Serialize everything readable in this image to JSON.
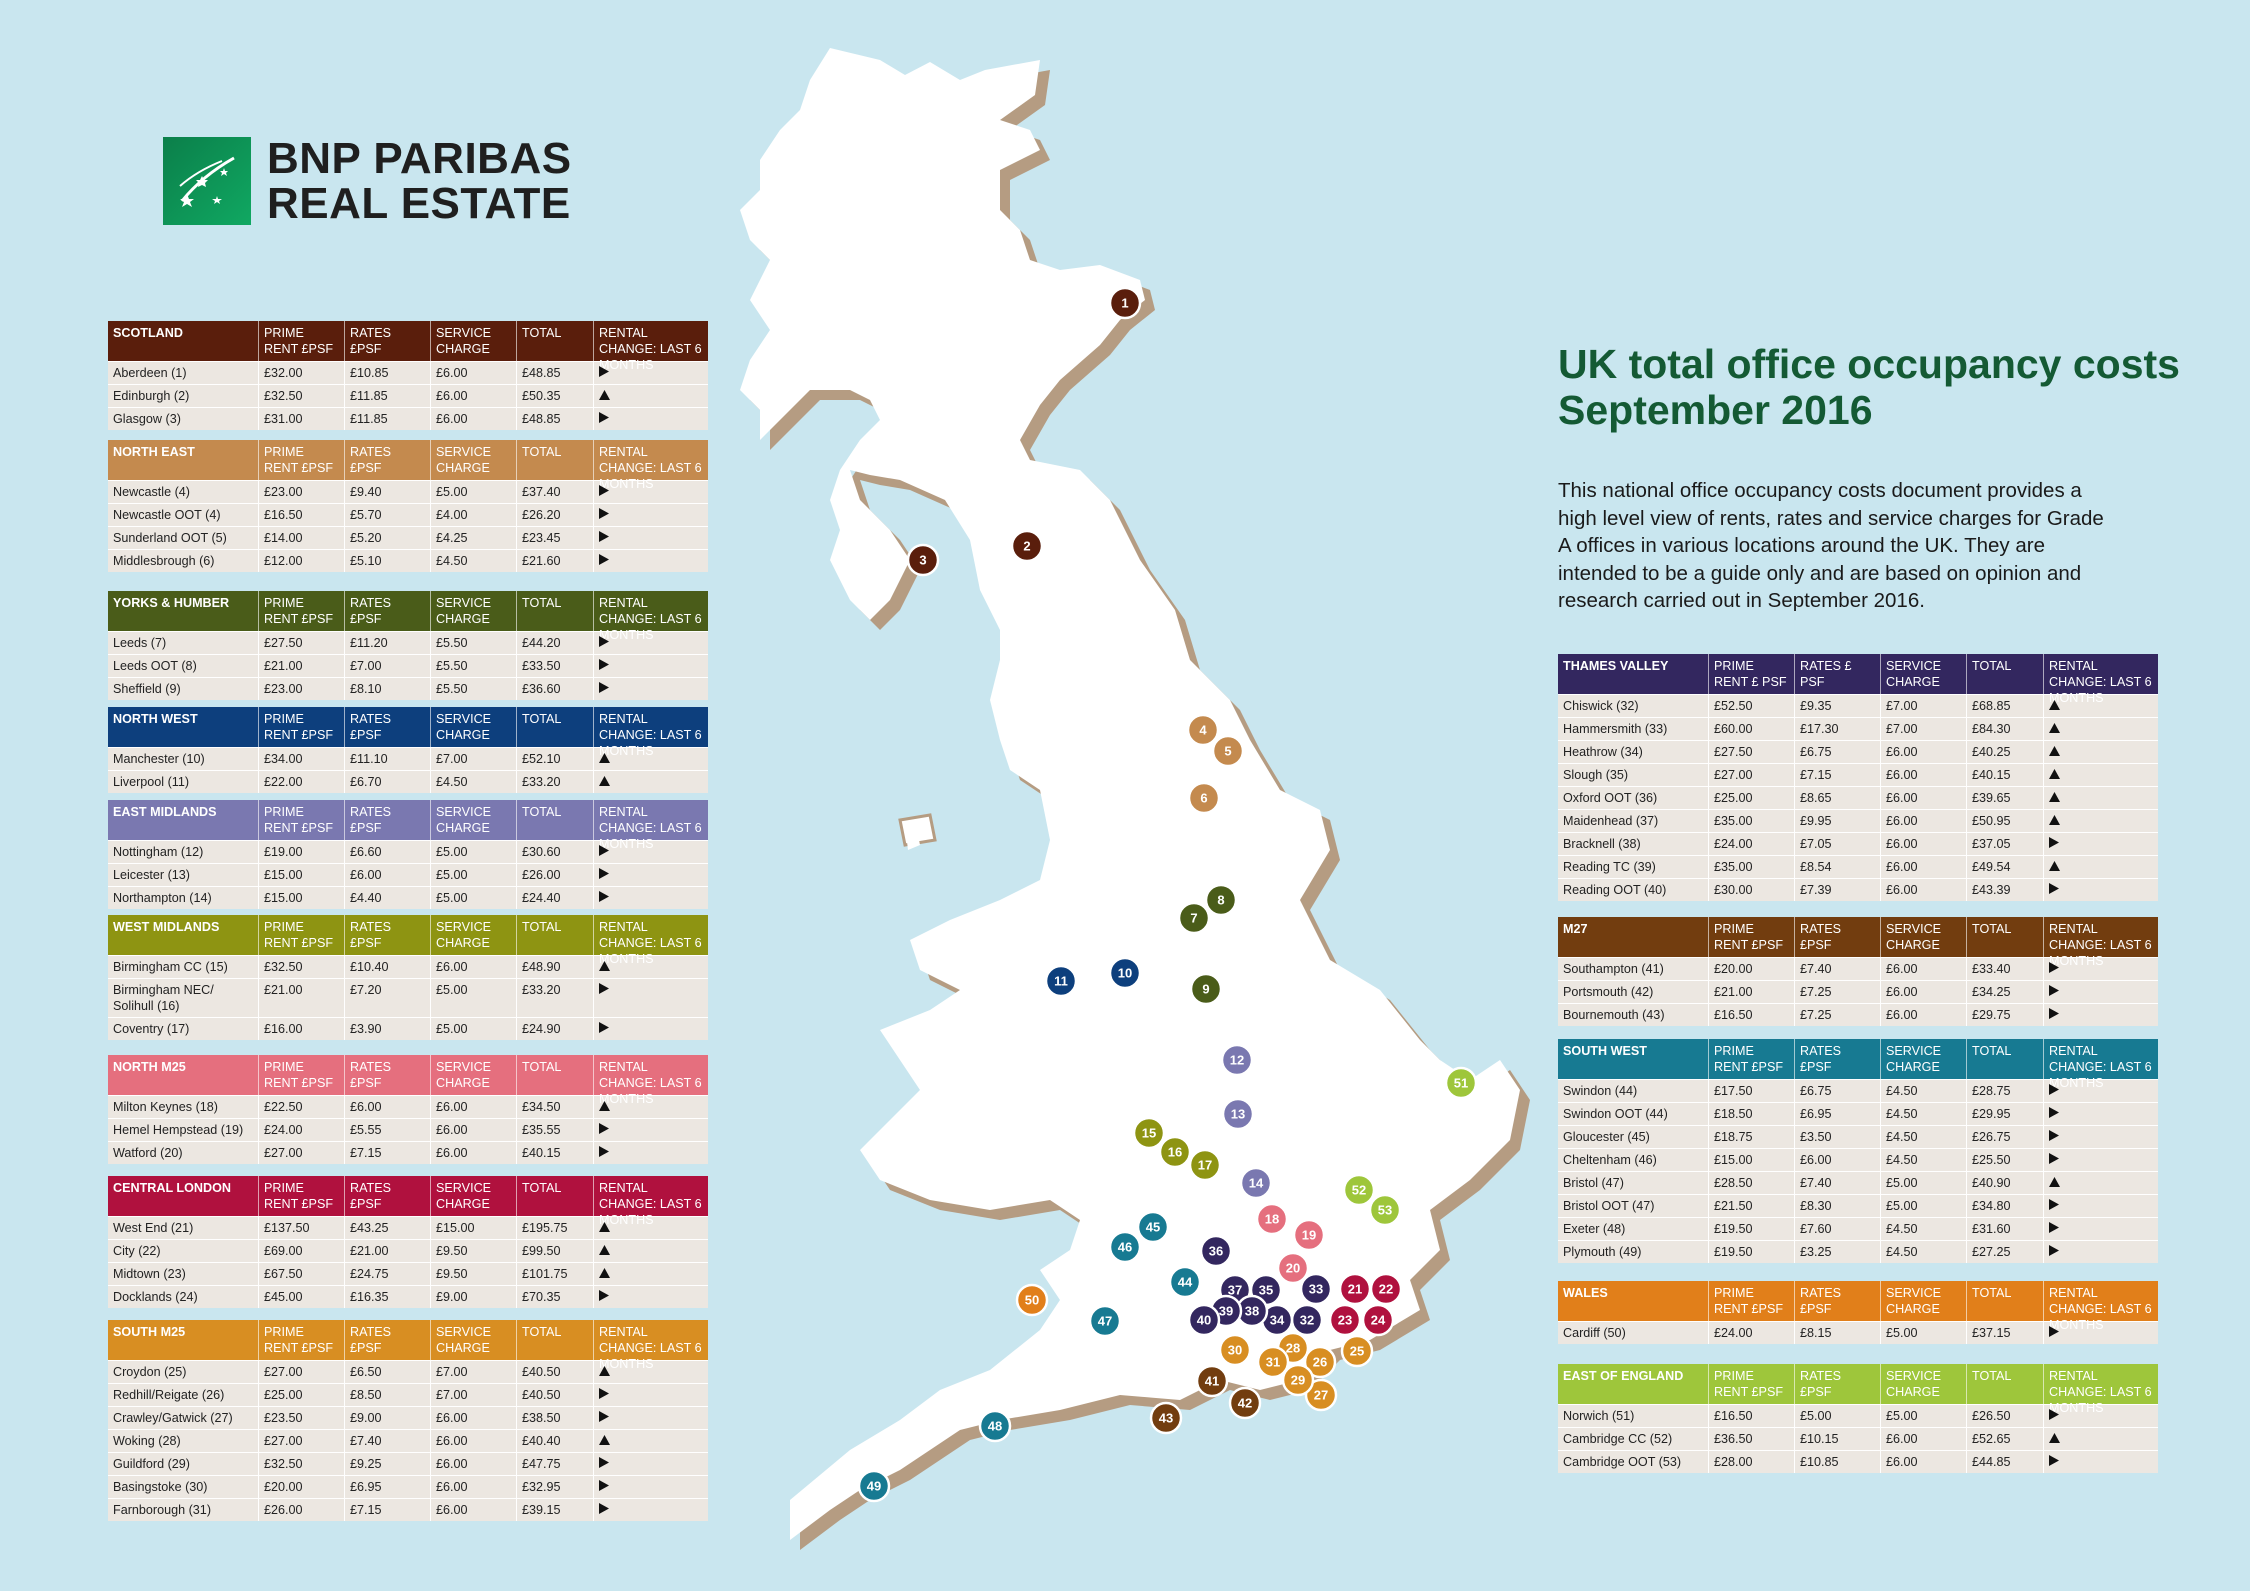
{
  "logo": {
    "line1": "BNP PARIBAS",
    "line2": "REAL ESTATE"
  },
  "title": {
    "line1": "UK total office occupancy costs",
    "line2": "September 2016"
  },
  "intro": "This national office occupancy costs document provides a high level view of rents, rates and service charges for Grade A offices in various locations around the UK. They are intended to be a guide only and are based on opinion and research carried out in September 2016.",
  "colors": {
    "scotland": "#5a1e0c",
    "north_east": "#c48a4e",
    "yorks": "#4a5c19",
    "north_west": "#0d3f7d",
    "east_midlands": "#7a78b0",
    "west_midlands": "#8e9412",
    "north_m25": "#e56f7e",
    "central_london": "#b0113e",
    "south_m25": "#d88e22",
    "thames_valley": "#33275f",
    "m27": "#723d0f",
    "south_west": "#177a92",
    "wales": "#e17f1a",
    "east_england": "#9ec63b"
  },
  "header_labels": {
    "prime": "PRIME RENT £PSF",
    "prime_tv": "PRIME RENT £ PSF",
    "rates": "RATES £PSF",
    "rates_tv": "RATES £ PSF",
    "service": "SERVICE CHARGE",
    "total": "TOTAL",
    "change": "RENTAL CHANGE: LAST 6 MONTHS"
  },
  "tables": [
    {
      "key": "scotland",
      "region": "SCOTLAND",
      "rows": [
        [
          "Aberdeen (1)",
          "£32.00",
          "£10.85",
          "£6.00",
          "£48.85",
          "right"
        ],
        [
          "Edinburgh (2)",
          "£32.50",
          "£11.85",
          "£6.00",
          "£50.35",
          "up"
        ],
        [
          "Glasgow (3)",
          "£31.00",
          "£11.85",
          "£6.00",
          "£48.85",
          "right"
        ]
      ]
    },
    {
      "key": "north_east",
      "region": "NORTH EAST",
      "rows": [
        [
          "Newcastle (4)",
          "£23.00",
          "£9.40",
          "£5.00",
          "£37.40",
          "right"
        ],
        [
          "Newcastle OOT (4)",
          "£16.50",
          "£5.70",
          "£4.00",
          "£26.20",
          "right"
        ],
        [
          "Sunderland OOT (5)",
          "£14.00",
          "£5.20",
          "£4.25",
          "£23.45",
          "right"
        ],
        [
          "Middlesbrough (6)",
          "£12.00",
          "£5.10",
          "£4.50",
          "£21.60",
          "right"
        ]
      ]
    },
    {
      "key": "yorks",
      "region": "YORKS & HUMBER",
      "rows": [
        [
          "Leeds (7)",
          "£27.50",
          "£11.20",
          "£5.50",
          "£44.20",
          "right"
        ],
        [
          "Leeds OOT (8)",
          "£21.00",
          "£7.00",
          "£5.50",
          "£33.50",
          "right"
        ],
        [
          "Sheffield (9)",
          "£23.00",
          "£8.10",
          "£5.50",
          "£36.60",
          "right"
        ]
      ]
    },
    {
      "key": "north_west",
      "region": "NORTH WEST",
      "rows": [
        [
          "Manchester (10)",
          "£34.00",
          "£11.10",
          "£7.00",
          "£52.10",
          "up"
        ],
        [
          "Liverpool (11)",
          "£22.00",
          "£6.70",
          "£4.50",
          "£33.20",
          "up"
        ]
      ]
    },
    {
      "key": "east_midlands",
      "region": "EAST MIDLANDS",
      "rows": [
        [
          "Nottingham (12)",
          "£19.00",
          "£6.60",
          "£5.00",
          "£30.60",
          "right"
        ],
        [
          "Leicester (13)",
          "£15.00",
          "£6.00",
          "£5.00",
          "£26.00",
          "right"
        ],
        [
          "Northampton (14)",
          "£15.00",
          "£4.40",
          "£5.00",
          "£24.40",
          "right"
        ]
      ]
    },
    {
      "key": "west_midlands",
      "region": "WEST MIDLANDS",
      "rows": [
        [
          "Birmingham CC (15)",
          "£32.50",
          "£10.40",
          "£6.00",
          "£48.90",
          "up"
        ],
        [
          "Birmingham NEC/ Solihull (16)",
          "£21.00",
          "£7.20",
          "£5.00",
          "£33.20",
          "right"
        ],
        [
          "Coventry (17)",
          "£16.00",
          "£3.90",
          "£5.00",
          "£24.90",
          "right"
        ]
      ]
    },
    {
      "key": "north_m25",
      "region": "NORTH M25",
      "rows": [
        [
          "Milton Keynes (18)",
          "£22.50",
          "£6.00",
          "£6.00",
          "£34.50",
          "up"
        ],
        [
          "Hemel Hempstead (19)",
          "£24.00",
          "£5.55",
          "£6.00",
          "£35.55",
          "right"
        ],
        [
          "Watford (20)",
          "£27.00",
          "£7.15",
          "£6.00",
          "£40.15",
          "right"
        ]
      ]
    },
    {
      "key": "central_london",
      "region": "CENTRAL LONDON",
      "rows": [
        [
          "West End (21)",
          "£137.50",
          "£43.25",
          "£15.00",
          "£195.75",
          "up"
        ],
        [
          "City (22)",
          "£69.00",
          "£21.00",
          "£9.50",
          "£99.50",
          "up"
        ],
        [
          "Midtown (23)",
          "£67.50",
          "£24.75",
          "£9.50",
          "£101.75",
          "up"
        ],
        [
          "Docklands (24)",
          "£45.00",
          "£16.35",
          "£9.00",
          "£70.35",
          "right"
        ]
      ]
    },
    {
      "key": "south_m25",
      "region": "SOUTH M25",
      "rows": [
        [
          "Croydon (25)",
          "£27.00",
          "£6.50",
          "£7.00",
          "£40.50",
          "up"
        ],
        [
          "Redhill/Reigate (26)",
          "£25.00",
          "£8.50",
          "£7.00",
          "£40.50",
          "right"
        ],
        [
          "Crawley/Gatwick (27)",
          "£23.50",
          "£9.00",
          "£6.00",
          "£38.50",
          "right"
        ],
        [
          "Woking (28)",
          "£27.00",
          "£7.40",
          "£6.00",
          "£40.40",
          "up"
        ],
        [
          "Guildford (29)",
          "£32.50",
          "£9.25",
          "£6.00",
          "£47.75",
          "right"
        ],
        [
          "Basingstoke (30)",
          "£20.00",
          "£6.95",
          "£6.00",
          "£32.95",
          "right"
        ],
        [
          "Farnborough (31)",
          "£26.00",
          "£7.15",
          "£6.00",
          "£39.15",
          "right"
        ]
      ]
    },
    {
      "key": "thames_valley",
      "region": "THAMES VALLEY",
      "tv": true,
      "rows": [
        [
          "Chiswick (32)",
          "£52.50",
          "£9.35",
          "£7.00",
          "£68.85",
          "up"
        ],
        [
          "Hammersmith (33)",
          "£60.00",
          "£17.30",
          "£7.00",
          "£84.30",
          "up"
        ],
        [
          "Heathrow (34)",
          "£27.50",
          "£6.75",
          "£6.00",
          "£40.25",
          "up"
        ],
        [
          "Slough (35)",
          "£27.00",
          "£7.15",
          "£6.00",
          "£40.15",
          "up"
        ],
        [
          "Oxford OOT (36)",
          "£25.00",
          "£8.65",
          "£6.00",
          "£39.65",
          "up"
        ],
        [
          "Maidenhead (37)",
          "£35.00",
          "£9.95",
          "£6.00",
          "£50.95",
          "up"
        ],
        [
          "Bracknell (38)",
          "£24.00",
          "£7.05",
          "£6.00",
          "£37.05",
          "right"
        ],
        [
          "Reading TC (39)",
          "£35.00",
          "£8.54",
          "£6.00",
          "£49.54",
          "up"
        ],
        [
          "Reading OOT (40)",
          "£30.00",
          "£7.39",
          "£6.00",
          "£43.39",
          "right"
        ]
      ]
    },
    {
      "key": "m27",
      "region": "M27",
      "rows": [
        [
          "Southampton (41)",
          "£20.00",
          "£7.40",
          "£6.00",
          "£33.40",
          "right"
        ],
        [
          "Portsmouth (42)",
          "£21.00",
          "£7.25",
          "£6.00",
          "£34.25",
          "right"
        ],
        [
          "Bournemouth (43)",
          "£16.50",
          "£7.25",
          "£6.00",
          "£29.75",
          "right"
        ]
      ]
    },
    {
      "key": "south_west",
      "region": "SOUTH WEST",
      "rows": [
        [
          "Swindon (44)",
          "£17.50",
          "£6.75",
          "£4.50",
          "£28.75",
          "right"
        ],
        [
          "Swindon OOT (44)",
          "£18.50",
          "£6.95",
          "£4.50",
          "£29.95",
          "right"
        ],
        [
          "Gloucester (45)",
          "£18.75",
          "£3.50",
          "£4.50",
          "£26.75",
          "right"
        ],
        [
          "Cheltenham (46)",
          "£15.00",
          "£6.00",
          "£4.50",
          "£25.50",
          "right"
        ],
        [
          "Bristol (47)",
          "£28.50",
          "£7.40",
          "£5.00",
          "£40.90",
          "up"
        ],
        [
          "Bristol OOT (47)",
          "£21.50",
          "£8.30",
          "£5.00",
          "£34.80",
          "right"
        ],
        [
          "Exeter (48)",
          "£19.50",
          "£7.60",
          "£4.50",
          "£31.60",
          "right"
        ],
        [
          "Plymouth (49)",
          "£19.50",
          "£3.25",
          "£4.50",
          "£27.25",
          "right"
        ]
      ]
    },
    {
      "key": "wales",
      "region": "WALES",
      "rows": [
        [
          "Cardiff (50)",
          "£24.00",
          "£8.15",
          "£5.00",
          "£37.15",
          "right"
        ]
      ]
    },
    {
      "key": "east_england",
      "region": "EAST OF ENGLAND",
      "rows": [
        [
          "Norwich (51)",
          "£16.50",
          "£5.00",
          "£5.00",
          "£26.50",
          "right"
        ],
        [
          "Cambridge CC (52)",
          "£36.50",
          "£10.15",
          "£6.00",
          "£52.65",
          "up"
        ],
        [
          "Cambridge OOT (53)",
          "£28.00",
          "£10.85",
          "£6.00",
          "£44.85",
          "right"
        ]
      ]
    }
  ],
  "pins": [
    {
      "n": "1",
      "c": "scotland"
    },
    {
      "n": "2",
      "c": "scotland"
    },
    {
      "n": "3",
      "c": "scotland"
    },
    {
      "n": "4",
      "c": "north_east"
    },
    {
      "n": "5",
      "c": "north_east"
    },
    {
      "n": "6",
      "c": "north_east"
    },
    {
      "n": "7",
      "c": "yorks"
    },
    {
      "n": "8",
      "c": "yorks"
    },
    {
      "n": "9",
      "c": "yorks"
    },
    {
      "n": "10",
      "c": "north_west"
    },
    {
      "n": "11",
      "c": "north_west"
    },
    {
      "n": "12",
      "c": "east_midlands"
    },
    {
      "n": "13",
      "c": "east_midlands"
    },
    {
      "n": "14",
      "c": "east_midlands"
    },
    {
      "n": "15",
      "c": "west_midlands"
    },
    {
      "n": "16",
      "c": "west_midlands"
    },
    {
      "n": "17",
      "c": "west_midlands"
    },
    {
      "n": "18",
      "c": "north_m25"
    },
    {
      "n": "19",
      "c": "north_m25"
    },
    {
      "n": "20",
      "c": "north_m25"
    },
    {
      "n": "21",
      "c": "central_london"
    },
    {
      "n": "22",
      "c": "central_london"
    },
    {
      "n": "23",
      "c": "central_london"
    },
    {
      "n": "24",
      "c": "central_london"
    },
    {
      "n": "25",
      "c": "south_m25"
    },
    {
      "n": "26",
      "c": "south_m25"
    },
    {
      "n": "27",
      "c": "south_m25"
    },
    {
      "n": "28",
      "c": "south_m25"
    },
    {
      "n": "29",
      "c": "south_m25"
    },
    {
      "n": "30",
      "c": "south_m25"
    },
    {
      "n": "31",
      "c": "south_m25"
    },
    {
      "n": "32",
      "c": "thames_valley"
    },
    {
      "n": "33",
      "c": "thames_valley"
    },
    {
      "n": "34",
      "c": "thames_valley"
    },
    {
      "n": "35",
      "c": "thames_valley"
    },
    {
      "n": "36",
      "c": "thames_valley"
    },
    {
      "n": "37",
      "c": "thames_valley"
    },
    {
      "n": "38",
      "c": "thames_valley"
    },
    {
      "n": "39",
      "c": "thames_valley"
    },
    {
      "n": "40",
      "c": "thames_valley"
    },
    {
      "n": "41",
      "c": "m27"
    },
    {
      "n": "42",
      "c": "m27"
    },
    {
      "n": "43",
      "c": "m27"
    },
    {
      "n": "44",
      "c": "south_west"
    },
    {
      "n": "45",
      "c": "south_west"
    },
    {
      "n": "46",
      "c": "south_west"
    },
    {
      "n": "47",
      "c": "south_west"
    },
    {
      "n": "48",
      "c": "south_west"
    },
    {
      "n": "49",
      "c": "south_west"
    },
    {
      "n": "50",
      "c": "wales"
    },
    {
      "n": "51",
      "c": "east_england"
    },
    {
      "n": "52",
      "c": "east_england"
    },
    {
      "n": "53",
      "c": "east_england"
    }
  ]
}
